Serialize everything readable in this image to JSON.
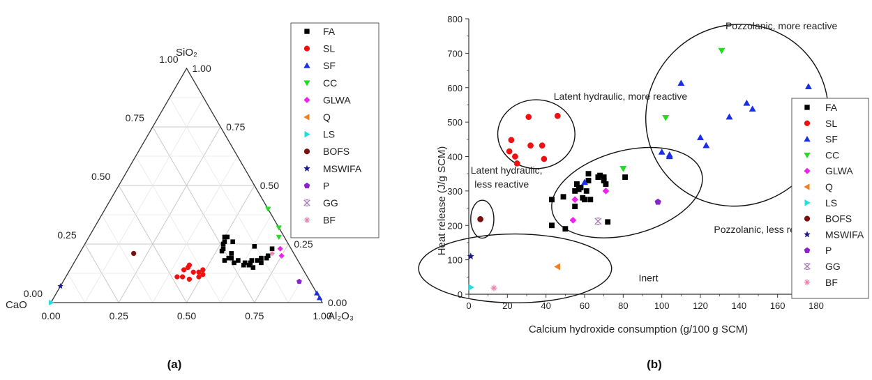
{
  "colors": {
    "FA": "#000000",
    "SL": "#ee1111",
    "SF": "#1a2ee6",
    "CC": "#22dd22",
    "GLWA": "#ee22ee",
    "Q": "#f08020",
    "LS": "#22dddd",
    "BOFS": "#7a1010",
    "MSWIFA": "#1a1a8a",
    "P": "#8822cc",
    "GG": "#a87ab8",
    "BF": "#f07aa8"
  },
  "series": [
    {
      "name": "FA",
      "marker": "square"
    },
    {
      "name": "SL",
      "marker": "circle"
    },
    {
      "name": "SF",
      "marker": "triangle-up"
    },
    {
      "name": "CC",
      "marker": "triangle-down"
    },
    {
      "name": "GLWA",
      "marker": "diamond"
    },
    {
      "name": "Q",
      "marker": "triangle-left"
    },
    {
      "name": "LS",
      "marker": "triangle-right"
    },
    {
      "name": "BOFS",
      "marker": "circle"
    },
    {
      "name": "MSWIFA",
      "marker": "star"
    },
    {
      "name": "P",
      "marker": "pentagon"
    },
    {
      "name": "GG",
      "marker": "x-cross"
    },
    {
      "name": "BF",
      "marker": "asterisk"
    }
  ],
  "panel_labels": [
    "(a)",
    "(b)"
  ],
  "chart_data": [
    {
      "type": "scatter",
      "subtype": "ternary",
      "axes": {
        "top": "SiO₂",
        "left": "CaO",
        "right": "Al₂O₃"
      },
      "ticks": [
        "0.00",
        "0.25",
        "0.50",
        "0.75",
        "1.00"
      ],
      "grid": true,
      "legend_position": "right",
      "points": {
        "FA": [
          [
            0.27,
            0.18,
            0.55
          ],
          [
            0.25,
            0.19,
            0.56
          ],
          [
            0.23,
            0.21,
            0.56
          ],
          [
            0.24,
            0.19,
            0.57
          ],
          [
            0.24,
            0.17,
            0.59
          ],
          [
            0.22,
            0.18,
            0.6
          ],
          [
            0.21,
            0.16,
            0.63
          ],
          [
            0.2,
            0.17,
            0.63
          ],
          [
            0.19,
            0.16,
            0.65
          ],
          [
            0.18,
            0.17,
            0.65
          ],
          [
            0.17,
            0.18,
            0.65
          ],
          [
            0.18,
            0.15,
            0.67
          ],
          [
            0.15,
            0.18,
            0.67
          ],
          [
            0.14,
            0.17,
            0.69
          ],
          [
            0.13,
            0.19,
            0.68
          ],
          [
            0.11,
            0.19,
            0.7
          ],
          [
            0.1,
            0.2,
            0.7
          ],
          [
            0.07,
            0.23,
            0.7
          ],
          [
            0.13,
            0.24,
            0.63
          ],
          [
            0.2,
            0.26,
            0.54
          ],
          [
            0.21,
            0.28,
            0.51
          ],
          [
            0.22,
            0.28,
            0.5
          ],
          [
            0.23,
            0.26,
            0.51
          ],
          [
            0.24,
            0.25,
            0.51
          ],
          [
            0.25,
            0.23,
            0.52
          ],
          [
            0.26,
            0.22,
            0.52
          ]
        ],
        "SL": [
          [
            0.48,
            0.11,
            0.41
          ],
          [
            0.46,
            0.11,
            0.43
          ],
          [
            0.44,
            0.1,
            0.46
          ],
          [
            0.41,
            0.13,
            0.46
          ],
          [
            0.39,
            0.13,
            0.48
          ],
          [
            0.38,
            0.12,
            0.5
          ],
          [
            0.4,
            0.11,
            0.49
          ],
          [
            0.37,
            0.14,
            0.49
          ],
          [
            0.42,
            0.15,
            0.43
          ],
          [
            0.44,
            0.14,
            0.42
          ],
          [
            0.41,
            0.16,
            0.43
          ]
        ],
        "SF": [
          [
            0.0,
            0.04,
            0.96
          ],
          [
            0.0,
            0.02,
            0.98
          ]
        ],
        "CC": [
          [
            0.0,
            0.32,
            0.68
          ],
          [
            0.0,
            0.4,
            0.6
          ],
          [
            0.02,
            0.28,
            0.7
          ]
        ],
        "GLWA": [
          [
            0.05,
            0.2,
            0.75
          ],
          [
            0.04,
            0.23,
            0.73
          ]
        ],
        "Q": [],
        "LS": [
          [
            1.0,
            0.0,
            0.0
          ]
        ],
        "BOFS": [
          [
            0.59,
            0.21,
            0.2
          ]
        ],
        "MSWIFA": [
          [
            0.93,
            0.07,
            0.0
          ]
        ],
        "P": [
          [
            0.04,
            0.09,
            0.87
          ]
        ],
        "GG": [],
        "BF": [
          [
            0.08,
            0.21,
            0.71
          ]
        ]
      }
    },
    {
      "type": "scatter",
      "xlabel": "Calcium hydroxide consumption (g/100 g SCM)",
      "ylabel": "Heat release (J/g SCM)",
      "xlim": [
        0,
        180
      ],
      "ylim": [
        0,
        800
      ],
      "xticks": [
        0,
        20,
        40,
        60,
        80,
        100,
        120,
        140,
        160,
        180
      ],
      "yticks": [
        0,
        100,
        200,
        300,
        400,
        500,
        600,
        700,
        800
      ],
      "legend_position": "right",
      "points": {
        "FA": [
          [
            43,
            275
          ],
          [
            43,
            200
          ],
          [
            49,
            283
          ],
          [
            50,
            190
          ],
          [
            55,
            300
          ],
          [
            55,
            255
          ],
          [
            56,
            320
          ],
          [
            57,
            305
          ],
          [
            58,
            310
          ],
          [
            59,
            280
          ],
          [
            60,
            275
          ],
          [
            61,
            300
          ],
          [
            62,
            350
          ],
          [
            62,
            330
          ],
          [
            63,
            275
          ],
          [
            67,
            340
          ],
          [
            68,
            345
          ],
          [
            70,
            340
          ],
          [
            70,
            330
          ],
          [
            71,
            320
          ],
          [
            72,
            210
          ],
          [
            81,
            340
          ]
        ],
        "SL": [
          [
            22,
            448
          ],
          [
            21,
            415
          ],
          [
            24,
            400
          ],
          [
            25,
            380
          ],
          [
            31,
            515
          ],
          [
            32,
            432
          ],
          [
            38,
            432
          ],
          [
            39,
            393
          ],
          [
            46,
            518
          ]
        ],
        "SF": [
          [
            60,
            325
          ],
          [
            100,
            413
          ],
          [
            104,
            400
          ],
          [
            104,
            405
          ],
          [
            110,
            613
          ],
          [
            120,
            455
          ],
          [
            123,
            432
          ],
          [
            135,
            515
          ],
          [
            144,
            555
          ],
          [
            147,
            538
          ],
          [
            176,
            603
          ]
        ],
        "CC": [
          [
            80,
            365
          ],
          [
            102,
            513
          ],
          [
            131,
            708
          ]
        ],
        "GLWA": [
          [
            54,
            215
          ],
          [
            55,
            275
          ],
          [
            71,
            300
          ]
        ],
        "Q": [
          [
            46,
            80
          ]
        ],
        "LS": [
          [
            1,
            20
          ]
        ],
        "BOFS": [
          [
            6,
            218
          ]
        ],
        "MSWIFA": [
          [
            1,
            110
          ]
        ],
        "P": [
          [
            98,
            268
          ]
        ],
        "GG": [
          [
            67,
            212
          ]
        ],
        "BF": [
          [
            13,
            18
          ]
        ]
      },
      "annotations": [
        {
          "text": "Pozzolanic, more reactive",
          "x": 133,
          "y": 770
        },
        {
          "text": "Latent hydraulic, more reactive",
          "x": 44,
          "y": 565
        },
        {
          "text": "Latent hydraulic,",
          "x": 1,
          "y": 350
        },
        {
          "text": "less reactive",
          "x": 3,
          "y": 310
        },
        {
          "text": "Pozzolanic, less reactive",
          "x": 127,
          "y": 178
        },
        {
          "text": "Inert",
          "x": 88,
          "y": 37
        }
      ],
      "regions": [
        {
          "cx": 35,
          "cy": 465,
          "rx": 20,
          "ry": 100,
          "rotate": 0
        },
        {
          "cx": 7,
          "cy": 218,
          "rx": 6,
          "ry": 55,
          "rotate": 0
        },
        {
          "cx": 82,
          "cy": 295,
          "rx": 40,
          "ry": 122,
          "rotate": -15
        },
        {
          "cx": 24,
          "cy": 75,
          "rx": 50,
          "ry": 100,
          "rotate": 0
        },
        {
          "cx": 139,
          "cy": 520,
          "rx": 48,
          "ry": 260,
          "rotate": -42
        }
      ]
    }
  ]
}
